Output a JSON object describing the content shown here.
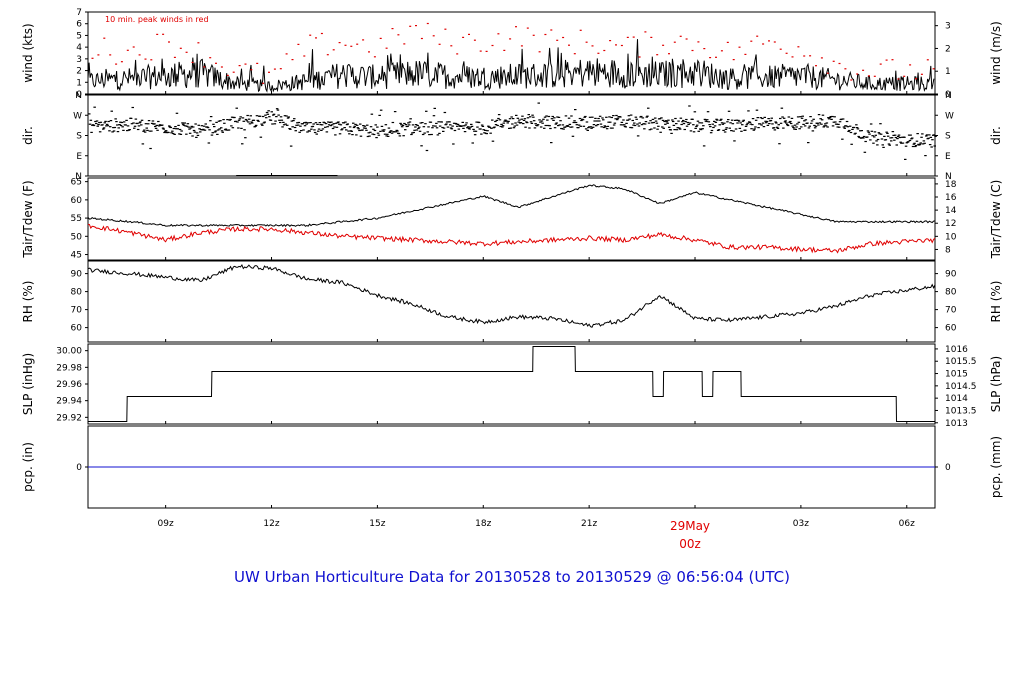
{
  "footer": "UW Urban Horticulture Data for 20130528  to  20130529 @ 06:56:04  (UTC)",
  "note": "10 min. peak winds in red",
  "date_label": [
    "29May",
    "00z"
  ],
  "x_ticks": [
    "09z",
    "12z",
    "15z",
    "18z",
    "21z",
    "00z",
    "03z",
    "06z"
  ],
  "colors": {
    "axis": "#000000",
    "peak": "#e00000",
    "dew": "#e00000",
    "precip": "#1010d0",
    "footer": "#1010d0"
  },
  "chart_data": [
    {
      "type": "line",
      "ylabel_left": "wind (kts)",
      "ylabel_right": "wind (m/s)",
      "ylim": [
        0,
        7
      ],
      "left_ticks": [
        "0",
        "1",
        "2",
        "3",
        "4",
        "5",
        "6",
        "7"
      ],
      "right_ticks": [
        "0",
        "1",
        "2",
        "3"
      ],
      "note": "10 min. peak winds in red",
      "series": [
        {
          "name": "wind",
          "color": "#000000",
          "x": [
            6.8,
            8.0,
            9.0,
            10.0,
            11.0,
            12.0,
            13.0,
            14.0,
            15.0,
            16.0,
            17.0,
            18.0,
            19.0,
            20.0,
            21.0,
            22.0,
            23.0,
            24.0,
            25.0,
            26.0,
            27.0,
            28.0,
            29.0,
            30.8
          ],
          "y": [
            1.0,
            1.2,
            1.4,
            1.6,
            0.8,
            0.6,
            1.0,
            1.5,
            1.3,
            1.6,
            1.4,
            1.3,
            1.4,
            1.5,
            1.7,
            1.6,
            1.5,
            1.7,
            1.2,
            1.3,
            1.4,
            1.1,
            0.8,
            0.8
          ]
        },
        {
          "name": "peak",
          "color": "#e00000",
          "x": [
            6.8,
            8.0,
            9.0,
            10.0,
            11.0,
            12.0,
            13.0,
            14.0,
            15.0,
            16.0,
            17.0,
            18.0,
            19.0,
            20.0,
            21.0,
            22.0,
            23.0,
            24.0,
            25.0,
            26.0,
            27.0,
            28.0,
            29.0,
            30.8
          ],
          "y": [
            4.0,
            3.5,
            4.5,
            3.5,
            2.0,
            1.5,
            4.0,
            4.5,
            4.0,
            5.5,
            4.5,
            4.5,
            5.0,
            4.5,
            4.5,
            4.0,
            4.5,
            4.5,
            3.5,
            4.5,
            4.0,
            2.5,
            2.0,
            2.0
          ]
        }
      ]
    },
    {
      "type": "scatter",
      "ylabel_left": "dir.",
      "ylabel_right": "dir.",
      "left_ticks": [
        "N",
        "E",
        "S",
        "W",
        "N"
      ],
      "right_ticks": [
        "N",
        "E",
        "S",
        "W",
        "N"
      ],
      "series": [
        {
          "name": "direction",
          "color": "#000000",
          "x": [
            6.8,
            8.0,
            9.0,
            10.0,
            11.0,
            12.0,
            13.0,
            14.0,
            15.0,
            16.0,
            17.0,
            18.0,
            19.0,
            20.0,
            21.0,
            22.0,
            23.0,
            24.0,
            25.0,
            26.0,
            27.0,
            28.0,
            29.0,
            30.8
          ],
          "y": [
            225,
            230,
            220,
            200,
            240,
            260,
            210,
            215,
            200,
            215,
            215,
            215,
            250,
            240,
            240,
            245,
            235,
            225,
            225,
            235,
            240,
            250,
            170,
            160
          ]
        }
      ]
    },
    {
      "type": "line",
      "ylabel_left": "Tair/Tdew (F)",
      "ylabel_right": "Tair/Tdew (C)",
      "left_ticks": [
        "45",
        "50",
        "55",
        "60",
        "65"
      ],
      "right_ticks": [
        "8",
        "10",
        "12",
        "14",
        "16",
        "18"
      ],
      "series": [
        {
          "name": "Tair",
          "color": "#000000",
          "x": [
            6.8,
            8.0,
            9.0,
            10.0,
            11.0,
            12.0,
            13.0,
            14.0,
            15.0,
            16.0,
            17.0,
            18.0,
            19.0,
            20.0,
            21.0,
            22.0,
            23.0,
            24.0,
            25.0,
            26.0,
            27.0,
            28.0,
            29.0,
            30.8
          ],
          "y": [
            55,
            54,
            53,
            53,
            53,
            53,
            53,
            54,
            55,
            57,
            59,
            61,
            58,
            61,
            64,
            63,
            59,
            62,
            60,
            58,
            56,
            54,
            54,
            54
          ]
        },
        {
          "name": "Tdew",
          "color": "#e00000",
          "x": [
            6.8,
            8.0,
            9.0,
            10.0,
            11.0,
            12.0,
            13.0,
            14.0,
            15.0,
            16.0,
            17.0,
            18.0,
            19.0,
            20.0,
            21.0,
            22.0,
            23.0,
            24.0,
            25.0,
            26.0,
            27.0,
            28.0,
            29.0,
            30.8
          ],
          "y": [
            53,
            51,
            49,
            51,
            52,
            52,
            51,
            50,
            49.5,
            49,
            48.5,
            48,
            48.5,
            49,
            49.5,
            49,
            50.5,
            49,
            47,
            47,
            46.5,
            46,
            48,
            49
          ]
        }
      ]
    },
    {
      "type": "line",
      "ylabel_left": "RH (%)",
      "ylabel_right": "RH (%)",
      "left_ticks": [
        "60",
        "70",
        "80",
        "90"
      ],
      "right_ticks": [
        "60",
        "70",
        "80",
        "90"
      ],
      "series": [
        {
          "name": "RH",
          "color": "#000000",
          "x": [
            6.8,
            8.0,
            9.0,
            10.0,
            11.0,
            12.0,
            13.0,
            14.0,
            15.0,
            16.0,
            17.0,
            18.0,
            19.0,
            20.0,
            21.0,
            22.0,
            23.0,
            24.0,
            25.0,
            26.0,
            27.0,
            28.0,
            29.0,
            30.8
          ],
          "y": [
            92,
            90,
            88,
            86,
            94,
            93,
            87,
            85,
            78,
            73,
            66,
            63,
            66,
            65,
            61,
            64,
            78,
            65,
            64,
            66,
            68,
            72,
            78,
            83
          ]
        }
      ]
    },
    {
      "type": "line",
      "ylabel_left": "SLP (inHg)",
      "ylabel_right": "SLP (hPa)",
      "left_ticks": [
        "29.92",
        "29.94",
        "29.96",
        "29.98",
        "30.00"
      ],
      "right_ticks": [
        "1013",
        "1013.5",
        "1014",
        "1014.5",
        "1015",
        "1015.5",
        "1016"
      ],
      "series": [
        {
          "name": "SLP",
          "color": "#000000",
          "x": [
            6.8,
            7.9,
            7.91,
            10.3,
            10.31,
            19.4,
            19.41,
            20.6,
            20.61,
            22.8,
            22.81,
            23.1,
            23.11,
            24.2,
            24.21,
            24.5,
            24.51,
            25.3,
            25.31,
            29.7,
            29.71,
            30.8
          ],
          "y": [
            29.915,
            29.915,
            29.945,
            29.945,
            29.975,
            29.975,
            30.005,
            30.005,
            29.975,
            29.975,
            29.945,
            29.945,
            29.975,
            29.975,
            29.945,
            29.945,
            29.975,
            29.975,
            29.945,
            29.945,
            29.915,
            29.915
          ]
        }
      ]
    },
    {
      "type": "line",
      "ylabel_left": "pcp. (in)",
      "ylabel_right": "pcp. (mm)",
      "left_ticks": [
        "0"
      ],
      "right_ticks": [
        "0"
      ],
      "series": [
        {
          "name": "precip",
          "color": "#1010d0",
          "x": [
            6.8,
            30.8
          ],
          "y": [
            0,
            0
          ]
        }
      ]
    }
  ]
}
